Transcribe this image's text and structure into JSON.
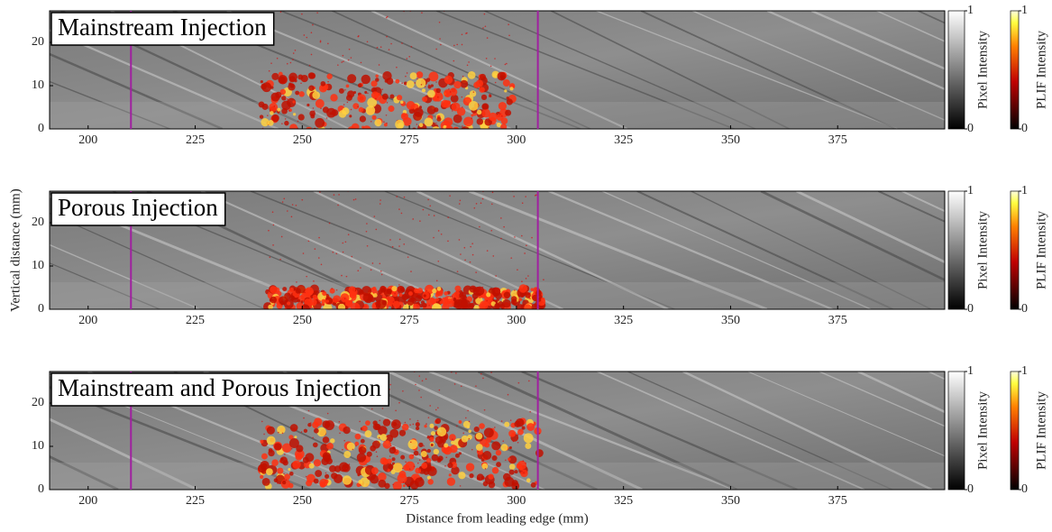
{
  "chart_data": [
    {
      "type": "image",
      "title": "Mainstream Injection",
      "xlim": [
        191,
        400
      ],
      "ylim": [
        0,
        27.3
      ],
      "xticks": [
        200,
        225,
        250,
        275,
        300,
        325,
        350,
        375
      ],
      "yticks": [
        0,
        10,
        20
      ],
      "vlines": [
        210,
        305
      ],
      "vline_color": "#a020a0",
      "colorbars": [
        {
          "label": "Pixel Intensity",
          "ticks": [
            0,
            1
          ]
        },
        {
          "label": "PLIF Intensity",
          "ticks": [
            0,
            1
          ]
        }
      ]
    },
    {
      "type": "image",
      "title": "Porous Injection",
      "xlim": [
        191,
        400
      ],
      "ylim": [
        0,
        27.3
      ],
      "xticks": [
        200,
        225,
        250,
        275,
        300,
        325,
        350,
        375
      ],
      "yticks": [
        0,
        10,
        20
      ],
      "vlines": [
        210,
        305
      ],
      "vline_color": "#a020a0",
      "ylabel": "Vertical distance (mm)",
      "colorbars": [
        {
          "label": "Pixel Intensity",
          "ticks": [
            0,
            1
          ]
        },
        {
          "label": "PLIF Intensity",
          "ticks": [
            0,
            1
          ]
        }
      ]
    },
    {
      "type": "image",
      "title": "Mainstream and Porous Injection",
      "xlim": [
        191,
        400
      ],
      "ylim": [
        0,
        27.3
      ],
      "xticks": [
        200,
        225,
        250,
        275,
        300,
        325,
        350,
        375
      ],
      "yticks": [
        0,
        10,
        20
      ],
      "vlines": [
        210,
        305
      ],
      "vline_color": "#a020a0",
      "xlabel": "Distance from leading edge (mm)",
      "colorbars": [
        {
          "label": "Pixel Intensity",
          "ticks": [
            0,
            1
          ]
        },
        {
          "label": "PLIF Intensity",
          "ticks": [
            0,
            1
          ]
        }
      ]
    }
  ]
}
